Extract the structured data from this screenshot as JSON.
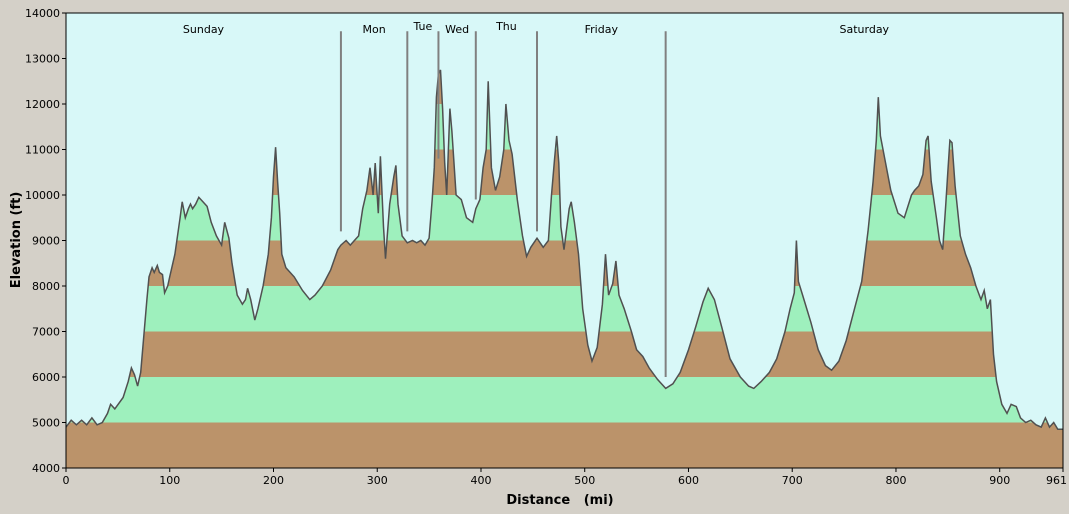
{
  "colors": {
    "plot_background": "#d8f8f8",
    "band_brown": "#bb936a",
    "band_green": "#9ef0bd",
    "profile_line": "#505050",
    "day_marker": "#808080",
    "window_background": "#d4d0c8"
  },
  "chart_data": {
    "type": "area",
    "xlabel": "Distance   (mi)",
    "ylabel": "Elevation (ft)",
    "xlim": [
      0,
      961
    ],
    "ylim": [
      4000,
      14000
    ],
    "x_ticks": [
      "0",
      "100",
      "200",
      "300",
      "400",
      "500",
      "600",
      "700",
      "800",
      "900",
      "961"
    ],
    "y_ticks": [
      "4000",
      "5000",
      "6000",
      "7000",
      "8000",
      "9000",
      "10000",
      "11000",
      "12000",
      "13000",
      "14000"
    ],
    "elevation_bands": {
      "step_ft": 1000,
      "pattern": "alternating brown and green horizontal bands below the profile, brown from 4000 to 5000 ft"
    },
    "day_segments": [
      {
        "label": "Sunday",
        "start": 0,
        "end": 265
      },
      {
        "label": "Mon",
        "start": 265,
        "end": 329
      },
      {
        "label": "Tue",
        "start": 329,
        "end": 359
      },
      {
        "label": "Wed",
        "start": 359,
        "end": 395
      },
      {
        "label": "Thu",
        "start": 395,
        "end": 454
      },
      {
        "label": "Friday",
        "start": 454,
        "end": 578
      },
      {
        "label": "Saturday",
        "start": 578,
        "end": 961
      }
    ],
    "day_markers": [
      {
        "x": 265,
        "top_elev": 13600,
        "bottom_elev": 9200
      },
      {
        "x": 329,
        "top_elev": 13600,
        "bottom_elev": 9200
      },
      {
        "x": 359,
        "top_elev": 13600,
        "bottom_elev": 10800
      },
      {
        "x": 395,
        "top_elev": 13600,
        "bottom_elev": 9900
      },
      {
        "x": 454,
        "top_elev": 13600,
        "bottom_elev": 9200
      },
      {
        "x": 578,
        "top_elev": 13600,
        "bottom_elev": 6000
      }
    ],
    "profile": [
      [
        0,
        4900
      ],
      [
        5,
        5050
      ],
      [
        10,
        4950
      ],
      [
        15,
        5050
      ],
      [
        20,
        4950
      ],
      [
        25,
        5100
      ],
      [
        30,
        4950
      ],
      [
        35,
        5000
      ],
      [
        40,
        5200
      ],
      [
        43,
        5400
      ],
      [
        47,
        5300
      ],
      [
        55,
        5550
      ],
      [
        60,
        5900
      ],
      [
        63,
        6200
      ],
      [
        66,
        6050
      ],
      [
        69,
        5800
      ],
      [
        72,
        6100
      ],
      [
        75,
        6900
      ],
      [
        78,
        7700
      ],
      [
        80,
        8200
      ],
      [
        83,
        8400
      ],
      [
        85,
        8300
      ],
      [
        88,
        8450
      ],
      [
        90,
        8300
      ],
      [
        93,
        8250
      ],
      [
        95,
        7850
      ],
      [
        98,
        8000
      ],
      [
        100,
        8200
      ],
      [
        105,
        8700
      ],
      [
        110,
        9500
      ],
      [
        112,
        9850
      ],
      [
        115,
        9500
      ],
      [
        118,
        9700
      ],
      [
        120,
        9800
      ],
      [
        122,
        9700
      ],
      [
        125,
        9800
      ],
      [
        128,
        9950
      ],
      [
        132,
        9850
      ],
      [
        136,
        9750
      ],
      [
        140,
        9400
      ],
      [
        145,
        9100
      ],
      [
        150,
        8900
      ],
      [
        153,
        9400
      ],
      [
        157,
        9050
      ],
      [
        160,
        8500
      ],
      [
        165,
        7800
      ],
      [
        170,
        7600
      ],
      [
        173,
        7700
      ],
      [
        175,
        7950
      ],
      [
        178,
        7700
      ],
      [
        182,
        7250
      ],
      [
        185,
        7500
      ],
      [
        190,
        8000
      ],
      [
        195,
        8700
      ],
      [
        198,
        9500
      ],
      [
        200,
        10400
      ],
      [
        202,
        11050
      ],
      [
        204,
        10300
      ],
      [
        206,
        9600
      ],
      [
        208,
        8700
      ],
      [
        212,
        8400
      ],
      [
        220,
        8200
      ],
      [
        228,
        7900
      ],
      [
        235,
        7700
      ],
      [
        240,
        7800
      ],
      [
        247,
        8000
      ],
      [
        255,
        8350
      ],
      [
        262,
        8800
      ],
      [
        265,
        8900
      ],
      [
        270,
        9000
      ],
      [
        274,
        8900
      ],
      [
        278,
        9000
      ],
      [
        282,
        9100
      ],
      [
        286,
        9700
      ],
      [
        290,
        10100
      ],
      [
        293,
        10600
      ],
      [
        296,
        10000
      ],
      [
        298,
        10700
      ],
      [
        301,
        9600
      ],
      [
        303,
        10850
      ],
      [
        306,
        9300
      ],
      [
        308,
        8600
      ],
      [
        312,
        9800
      ],
      [
        316,
        10400
      ],
      [
        318,
        10650
      ],
      [
        320,
        9800
      ],
      [
        324,
        9100
      ],
      [
        329,
        8950
      ],
      [
        334,
        9000
      ],
      [
        338,
        8950
      ],
      [
        342,
        9000
      ],
      [
        346,
        8900
      ],
      [
        350,
        9050
      ],
      [
        353,
        9900
      ],
      [
        355,
        10600
      ],
      [
        357,
        12150
      ],
      [
        359,
        12650
      ],
      [
        361,
        12750
      ],
      [
        363,
        11900
      ],
      [
        365,
        10700
      ],
      [
        367,
        10000
      ],
      [
        370,
        11900
      ],
      [
        372,
        11400
      ],
      [
        376,
        10000
      ],
      [
        381,
        9900
      ],
      [
        386,
        9500
      ],
      [
        392,
        9400
      ],
      [
        395,
        9700
      ],
      [
        399,
        9900
      ],
      [
        402,
        10600
      ],
      [
        405,
        11000
      ],
      [
        407,
        12500
      ],
      [
        410,
        10600
      ],
      [
        414,
        10100
      ],
      [
        418,
        10400
      ],
      [
        422,
        11000
      ],
      [
        424,
        12000
      ],
      [
        427,
        11200
      ],
      [
        430,
        10900
      ],
      [
        435,
        9900
      ],
      [
        440,
        9100
      ],
      [
        444,
        8650
      ],
      [
        448,
        8850
      ],
      [
        454,
        9050
      ],
      [
        460,
        8850
      ],
      [
        465,
        9000
      ],
      [
        468,
        10000
      ],
      [
        471,
        10800
      ],
      [
        473,
        11300
      ],
      [
        475,
        10700
      ],
      [
        477,
        9300
      ],
      [
        480,
        8800
      ],
      [
        485,
        9700
      ],
      [
        487,
        9850
      ],
      [
        490,
        9400
      ],
      [
        494,
        8700
      ],
      [
        498,
        7500
      ],
      [
        503,
        6700
      ],
      [
        507,
        6350
      ],
      [
        512,
        6650
      ],
      [
        517,
        7600
      ],
      [
        520,
        8700
      ],
      [
        523,
        7800
      ],
      [
        527,
        8050
      ],
      [
        530,
        8550
      ],
      [
        533,
        7800
      ],
      [
        538,
        7500
      ],
      [
        545,
        7000
      ],
      [
        550,
        6600
      ],
      [
        556,
        6450
      ],
      [
        562,
        6200
      ],
      [
        570,
        5950
      ],
      [
        578,
        5750
      ],
      [
        585,
        5850
      ],
      [
        592,
        6100
      ],
      [
        600,
        6600
      ],
      [
        607,
        7100
      ],
      [
        614,
        7650
      ],
      [
        619,
        7950
      ],
      [
        625,
        7700
      ],
      [
        632,
        7100
      ],
      [
        640,
        6400
      ],
      [
        650,
        6000
      ],
      [
        658,
        5800
      ],
      [
        663,
        5750
      ],
      [
        670,
        5900
      ],
      [
        678,
        6100
      ],
      [
        685,
        6400
      ],
      [
        693,
        7000
      ],
      [
        698,
        7500
      ],
      [
        702,
        7850
      ],
      [
        704,
        9000
      ],
      [
        706,
        8100
      ],
      [
        710,
        7800
      ],
      [
        718,
        7200
      ],
      [
        725,
        6600
      ],
      [
        732,
        6250
      ],
      [
        738,
        6150
      ],
      [
        745,
        6350
      ],
      [
        752,
        6800
      ],
      [
        760,
        7500
      ],
      [
        767,
        8100
      ],
      [
        773,
        9200
      ],
      [
        778,
        10300
      ],
      [
        781,
        11200
      ],
      [
        783,
        12150
      ],
      [
        785,
        11300
      ],
      [
        790,
        10700
      ],
      [
        795,
        10100
      ],
      [
        802,
        9600
      ],
      [
        808,
        9500
      ],
      [
        815,
        10000
      ],
      [
        818,
        10100
      ],
      [
        822,
        10200
      ],
      [
        826,
        10450
      ],
      [
        829,
        11200
      ],
      [
        831,
        11300
      ],
      [
        834,
        10300
      ],
      [
        839,
        9500
      ],
      [
        842,
        9000
      ],
      [
        845,
        8800
      ],
      [
        848,
        9800
      ],
      [
        850,
        10500
      ],
      [
        852,
        11200
      ],
      [
        854,
        11150
      ],
      [
        857,
        10200
      ],
      [
        862,
        9100
      ],
      [
        867,
        8700
      ],
      [
        872,
        8400
      ],
      [
        877,
        8000
      ],
      [
        882,
        7700
      ],
      [
        885,
        7900
      ],
      [
        888,
        7500
      ],
      [
        891,
        7700
      ],
      [
        894,
        6500
      ],
      [
        897,
        5900
      ],
      [
        902,
        5400
      ],
      [
        907,
        5200
      ],
      [
        911,
        5400
      ],
      [
        916,
        5350
      ],
      [
        920,
        5100
      ],
      [
        925,
        5000
      ],
      [
        930,
        5050
      ],
      [
        935,
        4950
      ],
      [
        940,
        4900
      ],
      [
        944,
        5100
      ],
      [
        948,
        4900
      ],
      [
        952,
        5000
      ],
      [
        956,
        4850
      ],
      [
        961,
        4850
      ]
    ]
  }
}
